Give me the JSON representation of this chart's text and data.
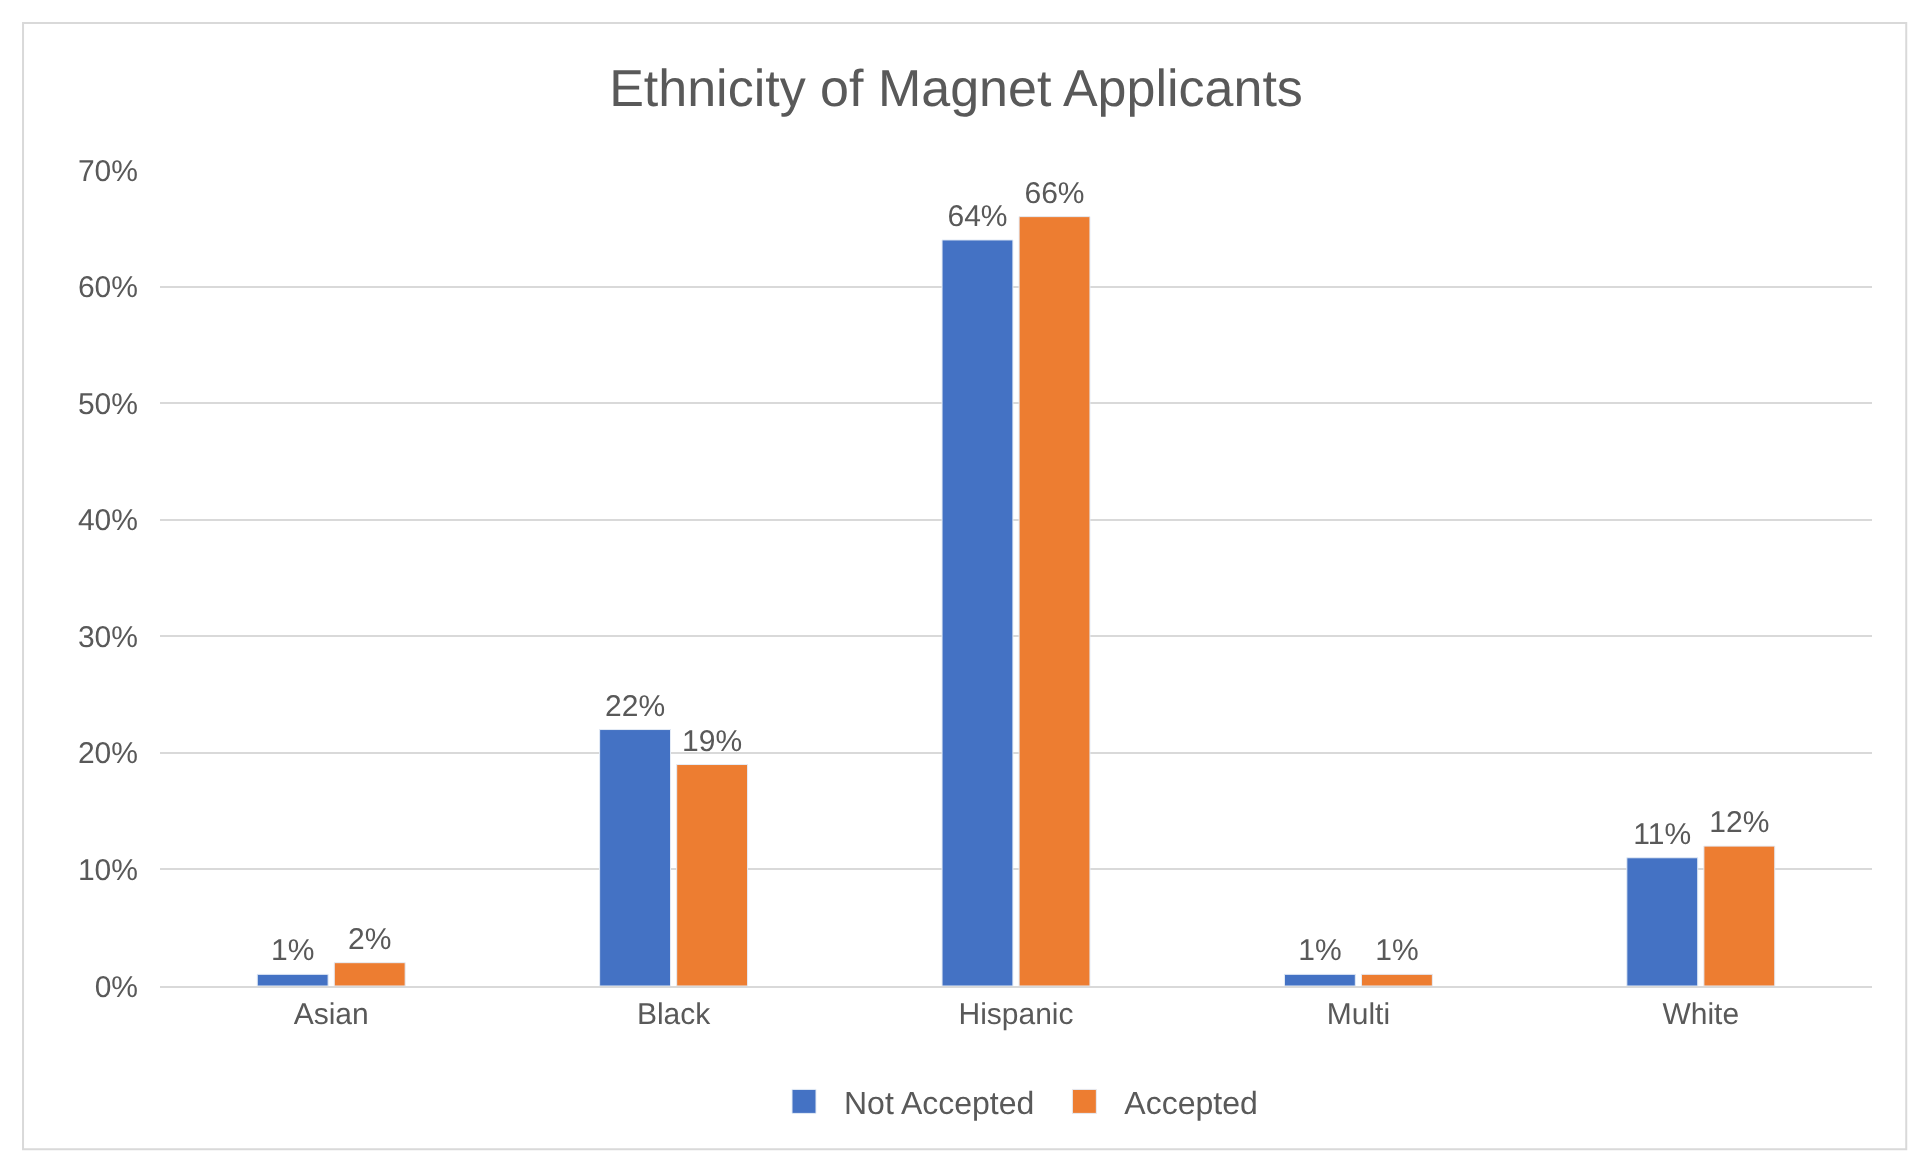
{
  "chart_data": {
    "type": "bar",
    "title": "Ethnicity of Magnet Applicants",
    "categories": [
      "Asian",
      "Black",
      "Hispanic",
      "Multi",
      "White"
    ],
    "series": [
      {
        "name": "Not Accepted",
        "color": "#4472c4",
        "values": [
          1,
          22,
          64,
          1,
          11
        ],
        "value_labels": [
          "1%",
          "22%",
          "64%",
          "1%",
          "11%"
        ]
      },
      {
        "name": "Accepted",
        "color": "#ed7d31",
        "values": [
          2,
          19,
          66,
          1,
          12
        ],
        "value_labels": [
          "2%",
          "19%",
          "66%",
          "1%",
          "12%"
        ]
      }
    ],
    "ylim": [
      0,
      70
    ],
    "yticks": [
      {
        "value": 0,
        "label": "0%"
      },
      {
        "value": 10,
        "label": "10%"
      },
      {
        "value": 20,
        "label": "20%"
      },
      {
        "value": 30,
        "label": "30%"
      },
      {
        "value": 40,
        "label": "40%"
      },
      {
        "value": 50,
        "label": "50%"
      },
      {
        "value": 60,
        "label": "60%"
      },
      {
        "value": 70,
        "label": "70%"
      }
    ],
    "grid": "y",
    "legend": "bottom"
  }
}
